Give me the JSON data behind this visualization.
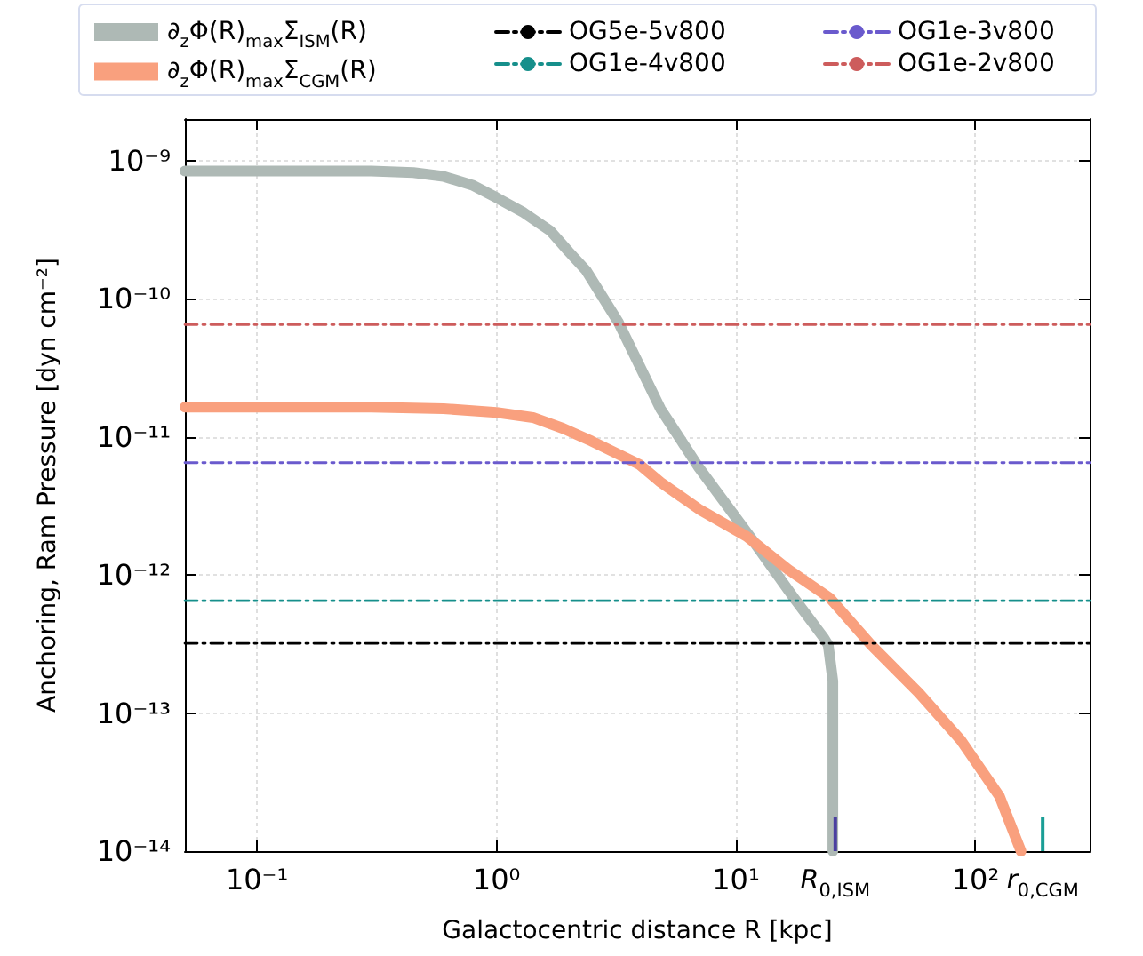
{
  "chart_data": {
    "type": "line",
    "xlabel": "Galactocentric distance R [kpc]",
    "ylabel": "Anchoring, Ram Pressure [dyn cm⁻²]",
    "log": "xy",
    "grid": true,
    "legend": "top",
    "line_style": "solid",
    "marker": "none",
    "xlim": [
      0.05,
      300
    ],
    "xticks": [
      {
        "value": 0.1,
        "label": "10⁻¹"
      },
      {
        "value": 1,
        "label": "10⁰"
      },
      {
        "value": 10,
        "label": "10¹"
      },
      {
        "value": 100,
        "label": "10²"
      }
    ],
    "ylim": [
      1e-14,
      2e-09
    ],
    "yticks": [
      {
        "value": 1e-14,
        "label": "10⁻¹⁴"
      },
      {
        "value": 1e-13,
        "label": "10⁻¹³"
      },
      {
        "value": 1e-12,
        "label": "10⁻¹²"
      },
      {
        "value": 1e-11,
        "label": "10⁻¹¹"
      },
      {
        "value": 1e-10,
        "label": "10⁻¹⁰"
      },
      {
        "value": 1e-09,
        "label": "10⁻⁹"
      }
    ],
    "series": [
      {
        "name": "∂$_{z}$Φ(R)$_{max}$Σ$_{ISM}$(R)",
        "color": "#aeb9b5",
        "x": [
          0.05,
          0.3,
          0.45,
          0.6,
          0.8,
          1.0,
          1.3,
          1.68,
          2.0,
          2.37,
          3.24,
          4.84,
          7.0,
          11.7,
          17.5,
          23.3,
          24.3,
          25.4,
          25.4
        ],
        "values": [
          8.4e-10,
          8.4e-10,
          8.2e-10,
          7.7e-10,
          6.6e-10,
          5.4e-10,
          4.2e-10,
          3.1e-10,
          2.2e-10,
          1.6e-10,
          6.7e-11,
          1.6e-11,
          6e-12,
          1.8e-12,
          6.8e-13,
          3.5e-13,
          3.1e-13,
          1.7e-13,
          1e-14
        ]
      },
      {
        "name": "∂$_{z}$Φ(R)$_{max}$Σ$_{CGM}$(R)",
        "color": "#f9a07e",
        "x": [
          0.05,
          0.3,
          0.6,
          1.0,
          1.42,
          1.9,
          2.5,
          3.96,
          4.84,
          7.0,
          11.1,
          16.5,
          24.7,
          36.8,
          58,
          86.7,
          126,
          155
        ],
        "values": [
          1.64e-11,
          1.64e-11,
          1.6e-11,
          1.5e-11,
          1.38e-11,
          1.15e-11,
          9.3e-12,
          6.3e-12,
          4.7e-12,
          3e-12,
          1.9e-12,
          1.1e-12,
          6.8e-13,
          3.1e-13,
          1.4e-13,
          6.4e-14,
          2.5e-14,
          1e-14
        ]
      },
      {
        "name": "OG5e-5v800",
        "color": "#000000",
        "line_style": "dashed",
        "x": [
          0.05,
          300
        ],
        "values": [
          3.2e-13,
          3.2e-13
        ]
      },
      {
        "name": "OG1e-4v800",
        "color": "#168f8b",
        "line_style": "dashed",
        "x": [
          0.05,
          300
        ],
        "values": [
          6.5e-13,
          6.5e-13
        ]
      },
      {
        "name": "OG1e-3v800",
        "color": "#6a5acd",
        "line_style": "dashed",
        "x": [
          0.05,
          300
        ],
        "values": [
          6.5e-12,
          6.5e-12
        ]
      },
      {
        "name": "OG1e-2v800",
        "color": "#cd5c5c",
        "line_style": "dashed",
        "x": [
          0.05,
          300
        ],
        "values": [
          6.5e-11,
          6.5e-11
        ]
      }
    ],
    "ref_lines": [
      {
        "axis": "x",
        "value": 26,
        "label": "R$_{0,ISM}$",
        "color": "#4b3fa0"
      },
      {
        "axis": "x",
        "value": 191,
        "label": "r$_{0,CGM}$",
        "color": "#1a9e96"
      }
    ]
  }
}
